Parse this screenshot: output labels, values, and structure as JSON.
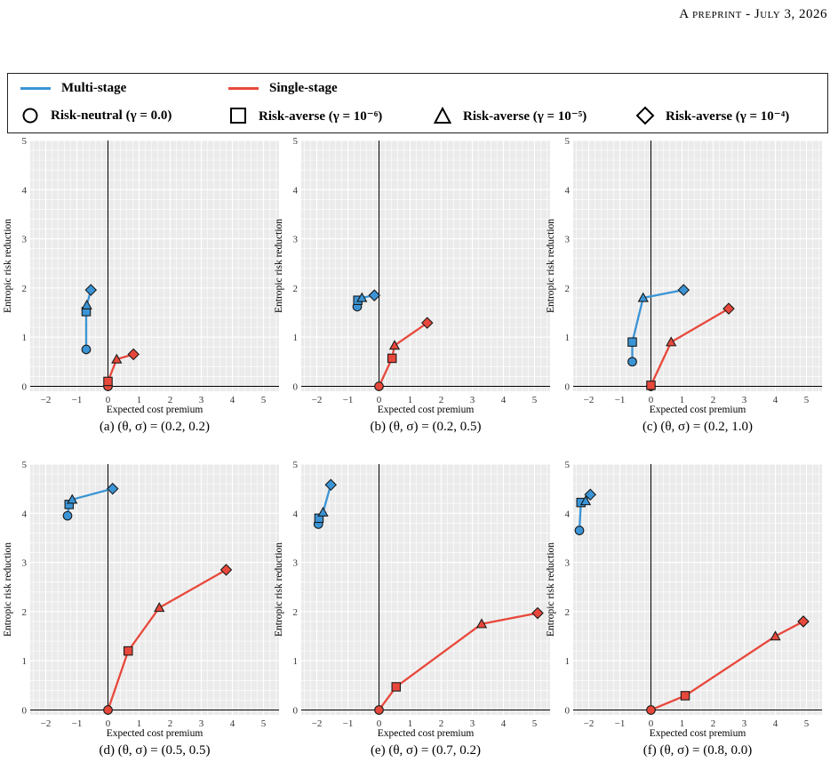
{
  "header": {
    "text": "A preprint - July 3, 2026"
  },
  "legend": {
    "multi": {
      "label": "Multi-stage",
      "color": "#3a94d6"
    },
    "single": {
      "label": "Single-stage",
      "color": "#e8483b"
    },
    "markers": [
      {
        "shape": "circle",
        "label": "Risk-neutral (γ = 0.0)"
      },
      {
        "shape": "square",
        "label": "Risk-averse (γ = 10⁻⁶)"
      },
      {
        "shape": "triangle",
        "label": "Risk-averse (γ = 10⁻⁵)"
      },
      {
        "shape": "diamond",
        "label": "Risk-averse (γ = 10⁻⁴)"
      }
    ]
  },
  "chart_data": [
    {
      "type": "line",
      "caption": "(a) (θ, σ) = (0.2, 0.2)",
      "xlabel": "Expected cost premium",
      "ylabel": "Entropic risk reduction",
      "xlim": [
        -2.5,
        5.5
      ],
      "ylim": [
        -0.1,
        5
      ],
      "xticks": [
        -2,
        -1,
        0,
        1,
        2,
        3,
        4,
        5
      ],
      "yticks": [
        0,
        1,
        2,
        3,
        4,
        5
      ],
      "series": [
        {
          "name": "Multi-stage",
          "points": [
            [
              -0.7,
              0.75
            ],
            [
              -0.7,
              1.52
            ],
            [
              -0.68,
              1.65
            ],
            [
              -0.55,
              1.96
            ]
          ]
        },
        {
          "name": "Single-stage",
          "points": [
            [
              0.0,
              0.0
            ],
            [
              0.0,
              0.1
            ],
            [
              0.28,
              0.55
            ],
            [
              0.82,
              0.65
            ]
          ]
        }
      ]
    },
    {
      "type": "line",
      "caption": "(b) (θ, σ) = (0.2, 0.5)",
      "xlabel": "Expected cost premium",
      "ylabel": "Entropic risk reduction",
      "xlim": [
        -2.5,
        5.5
      ],
      "ylim": [
        -0.1,
        5
      ],
      "xticks": [
        -2,
        -1,
        0,
        1,
        2,
        3,
        4,
        5
      ],
      "yticks": [
        0,
        1,
        2,
        3,
        4,
        5
      ],
      "series": [
        {
          "name": "Multi-stage",
          "points": [
            [
              -0.7,
              1.62
            ],
            [
              -0.68,
              1.75
            ],
            [
              -0.55,
              1.8
            ],
            [
              -0.15,
              1.85
            ]
          ]
        },
        {
          "name": "Single-stage",
          "points": [
            [
              0.0,
              0.0
            ],
            [
              0.42,
              0.57
            ],
            [
              0.5,
              0.83
            ],
            [
              1.55,
              1.29
            ]
          ]
        }
      ]
    },
    {
      "type": "line",
      "caption": "(c) (θ, σ) = (0.2, 1.0)",
      "xlabel": "Expected cost premium",
      "ylabel": "Entropic risk reduction",
      "xlim": [
        -2.5,
        5.5
      ],
      "ylim": [
        -0.1,
        5
      ],
      "xticks": [
        -2,
        -1,
        0,
        1,
        2,
        3,
        4,
        5
      ],
      "yticks": [
        0,
        1,
        2,
        3,
        4,
        5
      ],
      "series": [
        {
          "name": "Multi-stage",
          "points": [
            [
              -0.6,
              0.5
            ],
            [
              -0.6,
              0.9
            ],
            [
              -0.25,
              1.8
            ],
            [
              1.05,
              1.96
            ]
          ]
        },
        {
          "name": "Single-stage",
          "points": [
            [
              0.0,
              0.0
            ],
            [
              0.0,
              0.02
            ],
            [
              0.65,
              0.9
            ],
            [
              2.5,
              1.58
            ]
          ]
        }
      ]
    },
    {
      "type": "line",
      "caption": "(d) (θ, σ) = (0.5, 0.5)",
      "xlabel": "Expected cost premium",
      "ylabel": "Entropic risk reduction",
      "xlim": [
        -2.5,
        5.5
      ],
      "ylim": [
        -0.1,
        5
      ],
      "xticks": [
        -2,
        -1,
        0,
        1,
        2,
        3,
        4,
        5
      ],
      "yticks": [
        0,
        1,
        2,
        3,
        4,
        5
      ],
      "series": [
        {
          "name": "Multi-stage",
          "points": [
            [
              -1.3,
              3.95
            ],
            [
              -1.25,
              4.18
            ],
            [
              -1.15,
              4.28
            ],
            [
              0.15,
              4.5
            ]
          ]
        },
        {
          "name": "Single-stage",
          "points": [
            [
              0.0,
              0.0
            ],
            [
              0.65,
              1.2
            ],
            [
              1.65,
              2.08
            ],
            [
              3.8,
              2.85
            ]
          ]
        }
      ]
    },
    {
      "type": "line",
      "caption": "(e) (θ, σ) = (0.7, 0.2)",
      "xlabel": "Expected cost premium",
      "ylabel": "Entropic risk reduction",
      "xlim": [
        -2.5,
        5.5
      ],
      "ylim": [
        -0.1,
        5
      ],
      "xticks": [
        -2,
        -1,
        0,
        1,
        2,
        3,
        4,
        5
      ],
      "yticks": [
        0,
        1,
        2,
        3,
        4,
        5
      ],
      "series": [
        {
          "name": "Multi-stage",
          "points": [
            [
              -1.95,
              3.78
            ],
            [
              -1.93,
              3.9
            ],
            [
              -1.8,
              4.02
            ],
            [
              -1.55,
              4.58
            ]
          ]
        },
        {
          "name": "Single-stage",
          "points": [
            [
              0.0,
              0.0
            ],
            [
              0.55,
              0.47
            ],
            [
              3.3,
              1.75
            ],
            [
              5.1,
              1.97
            ]
          ]
        }
      ]
    },
    {
      "type": "line",
      "caption": "(f) (θ, σ) = (0.8, 0.0)",
      "xlabel": "Expected cost premium",
      "ylabel": "Entropic risk reduction",
      "xlim": [
        -2.5,
        5.5
      ],
      "ylim": [
        -0.1,
        5
      ],
      "xticks": [
        -2,
        -1,
        0,
        1,
        2,
        3,
        4,
        5
      ],
      "yticks": [
        0,
        1,
        2,
        3,
        4,
        5
      ],
      "series": [
        {
          "name": "Multi-stage",
          "points": [
            [
              -2.3,
              3.65
            ],
            [
              -2.25,
              4.22
            ],
            [
              -2.1,
              4.25
            ],
            [
              -1.95,
              4.38
            ]
          ]
        },
        {
          "name": "Single-stage",
          "points": [
            [
              0.0,
              0.0
            ],
            [
              1.1,
              0.29
            ],
            [
              4.0,
              1.5
            ],
            [
              4.9,
              1.8
            ]
          ]
        }
      ]
    }
  ]
}
